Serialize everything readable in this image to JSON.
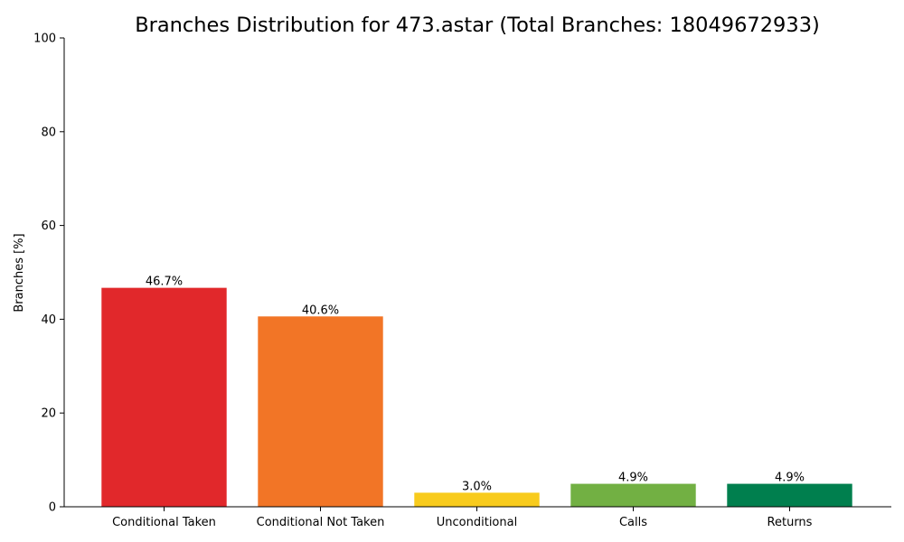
{
  "chart_data": {
    "type": "bar",
    "title": "Branches Distribution for 473.astar (Total Branches: 18049672933)",
    "xlabel": "",
    "ylabel": "Branches [%]",
    "ylim": [
      0,
      100
    ],
    "yticks": [
      0,
      20,
      40,
      60,
      80,
      100
    ],
    "categories": [
      "Conditional Taken",
      "Conditional Not Taken",
      "Unconditional",
      "Calls",
      "Returns"
    ],
    "values": [
      46.7,
      40.6,
      3.0,
      4.9,
      4.9
    ],
    "value_labels": [
      "46.7%",
      "40.6%",
      "3.0%",
      "4.9%",
      "4.9%"
    ],
    "colors": [
      "#e1282b",
      "#f27526",
      "#f8cb1d",
      "#72b043",
      "#007f4e"
    ],
    "grid": false,
    "legend": "none"
  }
}
